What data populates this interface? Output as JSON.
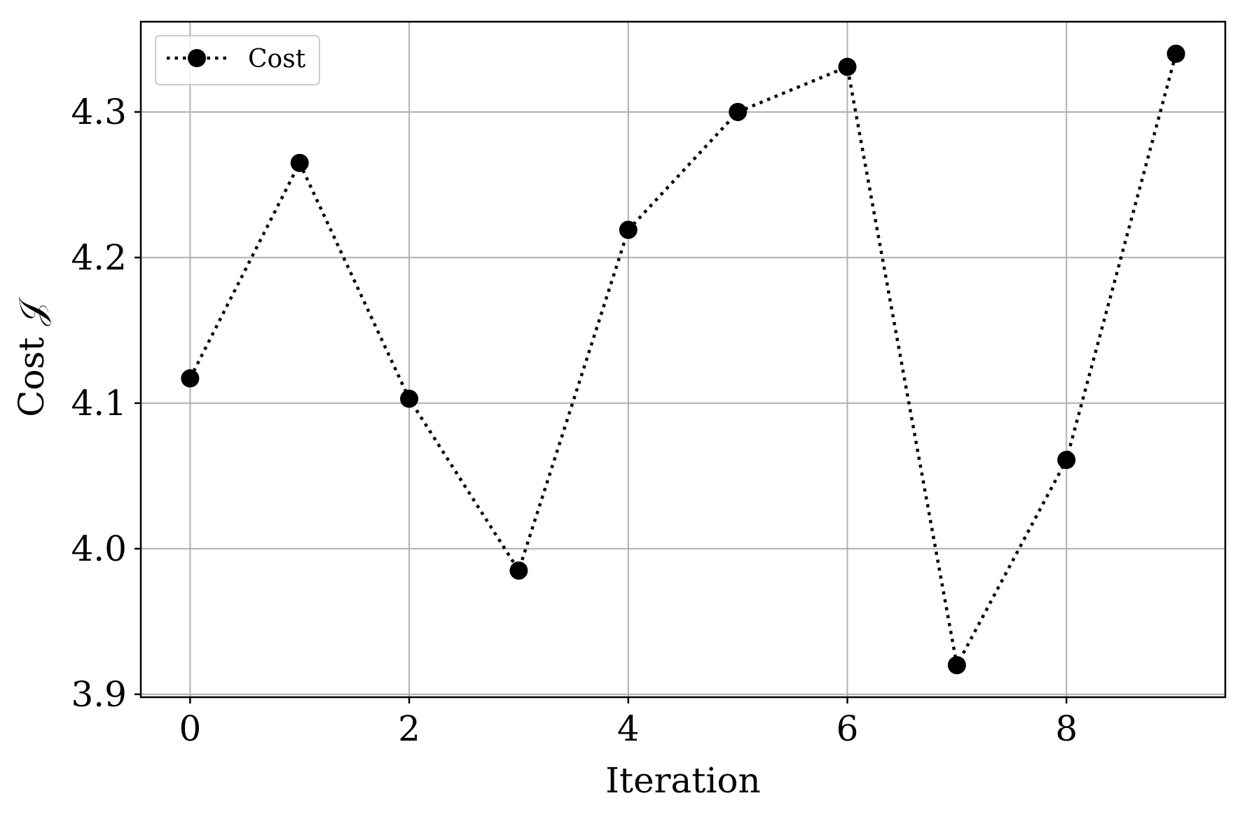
{
  "chart_data": {
    "type": "line",
    "xlabel": "Iteration",
    "ylabel": "Cost 𝒥",
    "xlim": [
      -0.45,
      9.45
    ],
    "ylim": [
      3.898,
      4.362
    ],
    "x_ticks": [
      0,
      2,
      4,
      6,
      8
    ],
    "y_ticks": [
      3.9,
      4.0,
      4.1,
      4.2,
      4.3
    ],
    "x_tick_labels": [
      "0",
      "2",
      "4",
      "6",
      "8"
    ],
    "y_tick_labels": [
      "3.9",
      "4.0",
      "4.1",
      "4.2",
      "4.3"
    ],
    "grid": true,
    "legend_position": "top-left",
    "series": [
      {
        "name": "Cost",
        "line_style": "dotted",
        "marker": "circle",
        "color": "#000000",
        "x": [
          0,
          1,
          2,
          3,
          4,
          5,
          6,
          7,
          8,
          9
        ],
        "y": [
          4.117,
          4.265,
          4.103,
          3.985,
          4.219,
          4.3,
          4.331,
          3.92,
          4.061,
          4.34
        ]
      }
    ]
  }
}
